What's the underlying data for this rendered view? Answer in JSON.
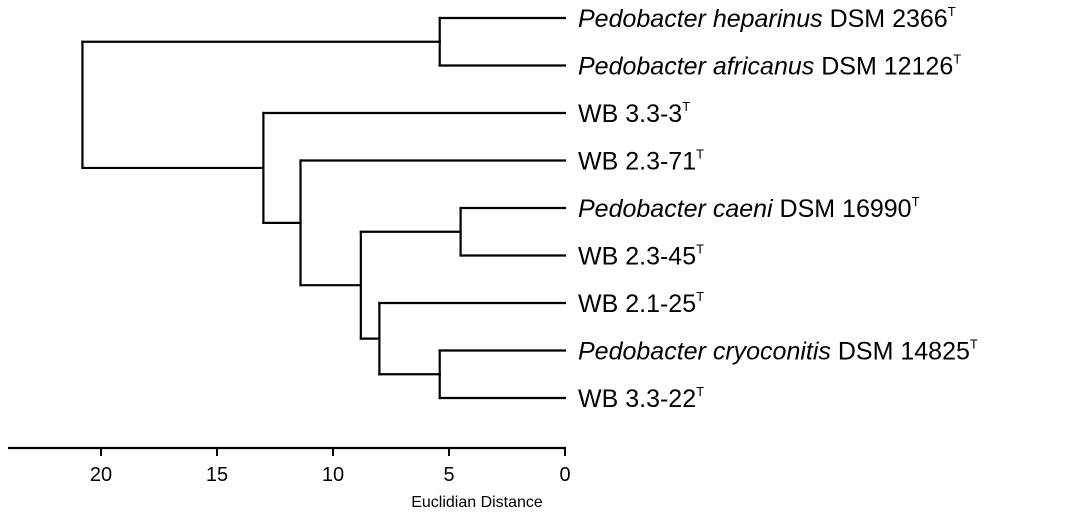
{
  "chart_data": {
    "type": "dendrogram",
    "axis": {
      "title": "Euclidian Distance",
      "range": [
        22,
        0
      ],
      "ticks": [
        "20",
        "15",
        "10",
        "5",
        "0"
      ]
    },
    "leaves": [
      {
        "genus": "Pedobacter",
        "species": "heparinus",
        "strain": "DSM 2366",
        "type_mark": "T"
      },
      {
        "genus": "Pedobacter",
        "species": "africanus",
        "strain": "DSM 12126",
        "type_mark": "T"
      },
      {
        "genus": "",
        "species": "",
        "strain": "WB 3.3-3",
        "type_mark": "T"
      },
      {
        "genus": "",
        "species": "",
        "strain": "WB 2.3-71",
        "type_mark": "T"
      },
      {
        "genus": "Pedobacter",
        "species": "caeni",
        "strain": "DSM 16990",
        "type_mark": "T"
      },
      {
        "genus": "",
        "species": "",
        "strain": "WB 2.3-45",
        "type_mark": "T"
      },
      {
        "genus": "",
        "species": "",
        "strain": "WB 2.1-25",
        "type_mark": "T"
      },
      {
        "genus": "Pedobacter",
        "species": "cryoconitis",
        "strain": "DSM 14825",
        "type_mark": "T"
      },
      {
        "genus": "",
        "species": "",
        "strain": "WB 3.3-22",
        "type_mark": "T"
      }
    ],
    "merges": [
      {
        "id": "n_hep_afr",
        "children": [
          0,
          1
        ],
        "distance": 5.4
      },
      {
        "id": "n_cae_245",
        "children": [
          4,
          5
        ],
        "distance": 4.5
      },
      {
        "id": "n_cry_322",
        "children": [
          7,
          8
        ],
        "distance": 5.4
      },
      {
        "id": "n_125_cry",
        "children": [
          6,
          "n_cry_322"
        ],
        "distance": 8.0
      },
      {
        "id": "n_cae_125",
        "children": [
          "n_cae_245",
          "n_125_cry"
        ],
        "distance": 8.8
      },
      {
        "id": "n_271_rest",
        "children": [
          3,
          "n_cae_125"
        ],
        "distance": 11.4
      },
      {
        "id": "n_33_rest",
        "children": [
          2,
          "n_271_rest"
        ],
        "distance": 13.0
      },
      {
        "id": "n_root",
        "children": [
          "n_hep_afr",
          "n_33_rest"
        ],
        "distance": 20.8
      }
    ]
  }
}
